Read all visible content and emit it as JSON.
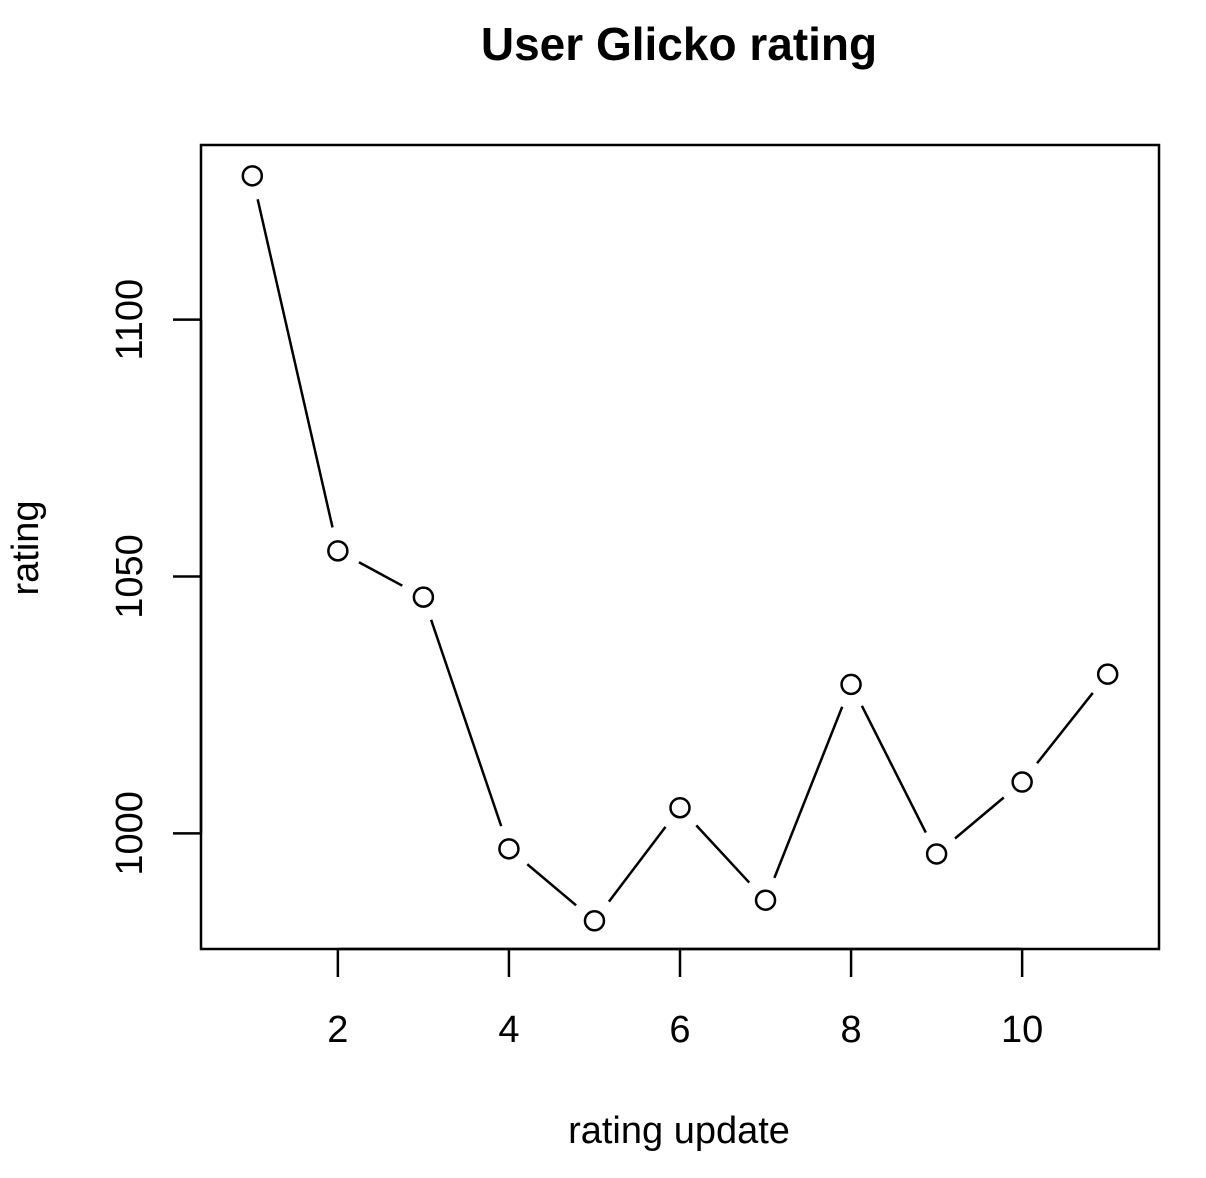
{
  "chart_data": {
    "type": "line",
    "title": "User Glicko rating",
    "xlabel": "rating update",
    "ylabel": "rating",
    "x": [
      1,
      2,
      3,
      4,
      5,
      6,
      7,
      8,
      9,
      10,
      11
    ],
    "y": [
      1128,
      1055,
      1046,
      997,
      983,
      1005,
      987,
      1029,
      996,
      1010,
      1031
    ],
    "xlim": [
      0.4,
      11.6
    ],
    "ylim": [
      977.5,
      1134
    ],
    "xticks": [
      2,
      4,
      6,
      8,
      10
    ],
    "yticks": [
      1000,
      1050,
      1100
    ],
    "grid": false,
    "marker": "open-circle",
    "line_color": "#000000",
    "marker_fill": "#ffffff"
  }
}
